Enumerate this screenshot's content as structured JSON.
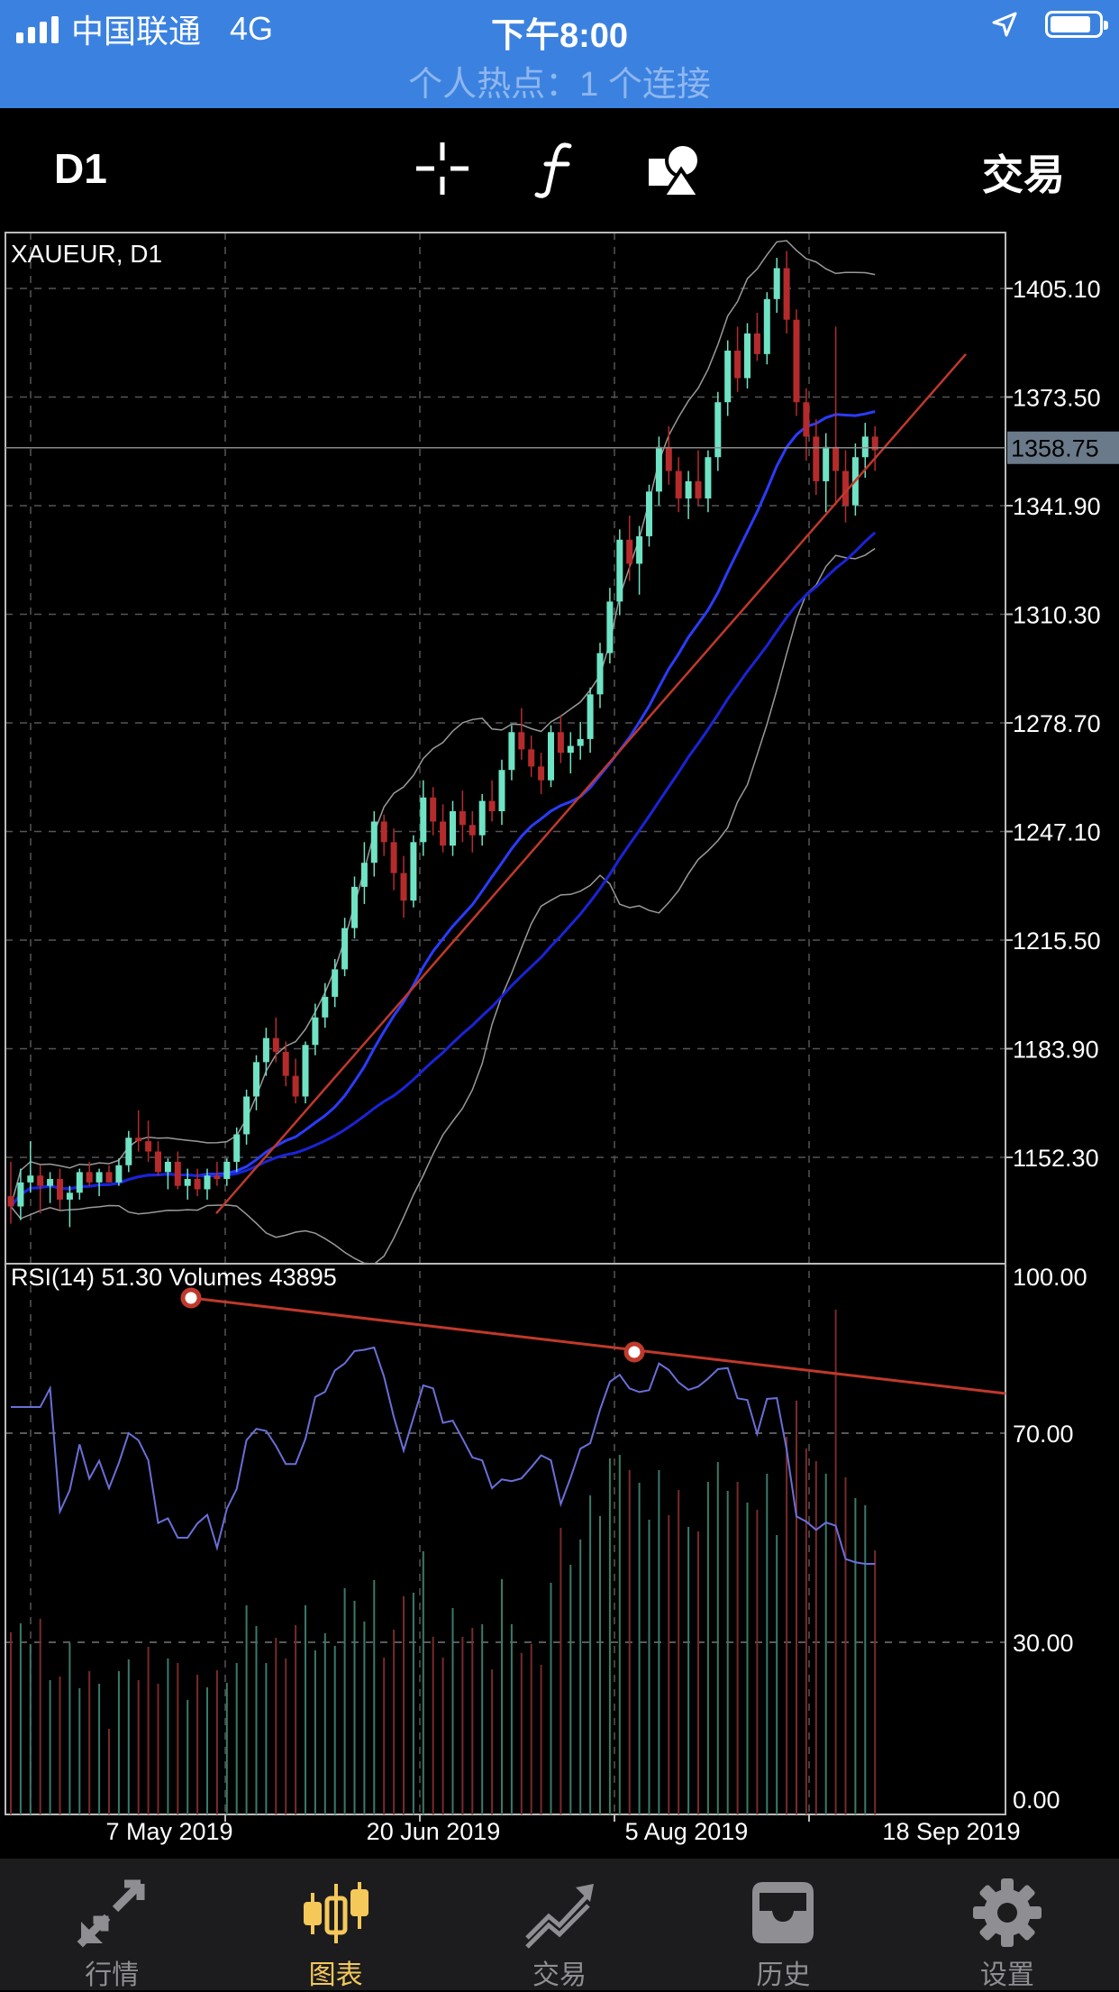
{
  "status_bar": {
    "carrier": "中国联通",
    "network": "4G",
    "time": "下午8:00",
    "hotspot": "个人热点：1 个连接"
  },
  "toolbar": {
    "timeframe": "D1",
    "trade": "交易",
    "icons": [
      "crosshair-icon",
      "function-icon",
      "objects-icon"
    ]
  },
  "chart_data": [
    {
      "type": "candlestick",
      "label": "XAUEUR, D1",
      "current_price": "1358.75",
      "y_ticks": [
        "1405.10",
        "1373.50",
        "1341.90",
        "1310.30",
        "1278.70",
        "1247.10",
        "1215.50",
        "1183.90",
        "1152.30"
      ],
      "y_range": [
        1128,
        1419
      ],
      "candles": [
        [
          1141,
          1151,
          1133,
          1138
        ],
        [
          1138,
          1149,
          1134,
          1145
        ],
        [
          1145,
          1157,
          1142,
          1147
        ],
        [
          1147,
          1150,
          1136,
          1144
        ],
        [
          1144,
          1148,
          1139,
          1146
        ],
        [
          1146,
          1149,
          1137,
          1140
        ],
        [
          1140,
          1144,
          1132,
          1142
        ],
        [
          1142,
          1149,
          1140,
          1148
        ],
        [
          1148,
          1151,
          1144,
          1145
        ],
        [
          1145,
          1149,
          1141,
          1148
        ],
        [
          1148,
          1150,
          1145,
          1145
        ],
        [
          1145,
          1152,
          1144,
          1150
        ],
        [
          1150,
          1160,
          1148,
          1158
        ],
        [
          1158,
          1166,
          1154,
          1157
        ],
        [
          1157,
          1163,
          1151,
          1154
        ],
        [
          1154,
          1157,
          1147,
          1148
        ],
        [
          1148,
          1152,
          1143,
          1151
        ],
        [
          1151,
          1154,
          1143,
          1144
        ],
        [
          1144,
          1149,
          1140,
          1146
        ],
        [
          1146,
          1149,
          1141,
          1143
        ],
        [
          1143,
          1149,
          1140,
          1147
        ],
        [
          1147,
          1151,
          1144,
          1146
        ],
        [
          1146,
          1152,
          1144,
          1151
        ],
        [
          1151,
          1161,
          1148,
          1159
        ],
        [
          1159,
          1172,
          1156,
          1170
        ],
        [
          1170,
          1182,
          1166,
          1180
        ],
        [
          1180,
          1190,
          1176,
          1187
        ],
        [
          1187,
          1193,
          1180,
          1183
        ],
        [
          1183,
          1186,
          1173,
          1176
        ],
        [
          1176,
          1181,
          1168,
          1170
        ],
        [
          1170,
          1186,
          1168,
          1185
        ],
        [
          1185,
          1197,
          1182,
          1193
        ],
        [
          1193,
          1203,
          1190,
          1199
        ],
        [
          1199,
          1210,
          1196,
          1207
        ],
        [
          1207,
          1222,
          1205,
          1219
        ],
        [
          1219,
          1234,
          1216,
          1231
        ],
        [
          1231,
          1244,
          1226,
          1238
        ],
        [
          1238,
          1253,
          1234,
          1250
        ],
        [
          1250,
          1252,
          1240,
          1244
        ],
        [
          1244,
          1248,
          1230,
          1235
        ],
        [
          1235,
          1240,
          1222,
          1227
        ],
        [
          1227,
          1246,
          1225,
          1244
        ],
        [
          1244,
          1262,
          1240,
          1257
        ],
        [
          1257,
          1260,
          1246,
          1250
        ],
        [
          1250,
          1255,
          1241,
          1243
        ],
        [
          1243,
          1256,
          1240,
          1253
        ],
        [
          1253,
          1259,
          1244,
          1249
        ],
        [
          1249,
          1253,
          1241,
          1246
        ],
        [
          1246,
          1258,
          1243,
          1256
        ],
        [
          1256,
          1262,
          1250,
          1253
        ],
        [
          1253,
          1268,
          1249,
          1265
        ],
        [
          1265,
          1278,
          1262,
          1276
        ],
        [
          1276,
          1283,
          1268,
          1271
        ],
        [
          1271,
          1275,
          1263,
          1266
        ],
        [
          1266,
          1270,
          1258,
          1262
        ],
        [
          1262,
          1278,
          1260,
          1276
        ],
        [
          1276,
          1281,
          1267,
          1270
        ],
        [
          1270,
          1276,
          1264,
          1272
        ],
        [
          1272,
          1279,
          1268,
          1274
        ],
        [
          1274,
          1289,
          1270,
          1287
        ],
        [
          1287,
          1302,
          1283,
          1299
        ],
        [
          1299,
          1318,
          1296,
          1314
        ],
        [
          1314,
          1335,
          1310,
          1332
        ],
        [
          1332,
          1339,
          1320,
          1325
        ],
        [
          1325,
          1336,
          1316,
          1333
        ],
        [
          1333,
          1348,
          1330,
          1346
        ],
        [
          1346,
          1362,
          1342,
          1359
        ],
        [
          1359,
          1365,
          1348,
          1352
        ],
        [
          1352,
          1356,
          1340,
          1344
        ],
        [
          1344,
          1352,
          1338,
          1349
        ],
        [
          1349,
          1358,
          1342,
          1344
        ],
        [
          1344,
          1358,
          1340,
          1356
        ],
        [
          1356,
          1375,
          1352,
          1372
        ],
        [
          1372,
          1390,
          1368,
          1387
        ],
        [
          1387,
          1394,
          1375,
          1379
        ],
        [
          1379,
          1395,
          1376,
          1392
        ],
        [
          1392,
          1398,
          1384,
          1386
        ],
        [
          1386,
          1404,
          1383,
          1402
        ],
        [
          1402,
          1414,
          1398,
          1411
        ],
        [
          1411,
          1416,
          1392,
          1396
        ],
        [
          1396,
          1399,
          1368,
          1372
        ],
        [
          1372,
          1376,
          1355,
          1362
        ],
        [
          1362,
          1367,
          1345,
          1349
        ],
        [
          1349,
          1363,
          1340,
          1359
        ],
        [
          1359,
          1394,
          1342,
          1352
        ],
        [
          1352,
          1358,
          1337,
          1342
        ],
        [
          1342,
          1360,
          1339,
          1356
        ],
        [
          1356,
          1366,
          1350,
          1362
        ],
        [
          1362,
          1365,
          1352,
          1358
        ]
      ],
      "series": [
        "bollinger-upper",
        "bollinger-middle",
        "bollinger-lower",
        "moving-average-blue",
        "trendline"
      ]
    },
    {
      "type": "line",
      "label": "RSI(14) 51.30 Volumes 43895",
      "y_ticks": [
        "100.00",
        "70.00",
        "30.00",
        "0.00"
      ],
      "y_range": [
        0,
        100
      ]
    }
  ],
  "x_axis": {
    "labels": [
      "7 May 2019",
      "20 Jun 2019",
      "5 Aug 2019",
      "18 Sep 2019"
    ]
  },
  "tabs": [
    {
      "label": "行情",
      "icon": "quotes-arrows-icon",
      "active": false
    },
    {
      "label": "图表",
      "icon": "candlestick-chart-icon",
      "active": true
    },
    {
      "label": "交易",
      "icon": "trade-trend-icon",
      "active": false
    },
    {
      "label": "历史",
      "icon": "history-inbox-icon",
      "active": false
    },
    {
      "label": "设置",
      "icon": "settings-gear-icon",
      "active": false
    }
  ]
}
